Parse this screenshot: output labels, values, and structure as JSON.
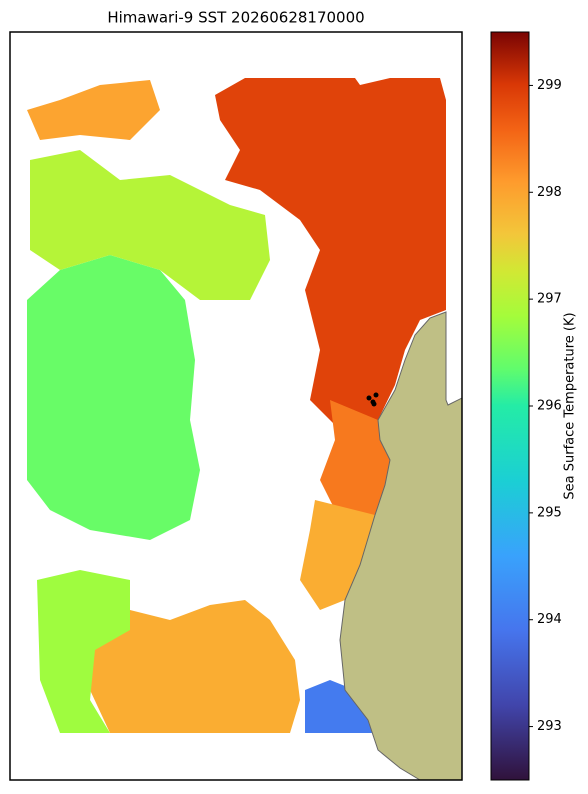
{
  "chart_data": {
    "type": "map",
    "title": "Himawari-9 SST 20260628170000",
    "colorbar_label": "Sea Surface Temperature (K)",
    "clim": [
      292.5,
      299.5
    ],
    "colorbar_ticks": [
      293,
      294,
      295,
      296,
      297,
      298,
      299
    ],
    "region_values": [
      298.9,
      298.4,
      297.9,
      296.4,
      297.0,
      297.9,
      296.8,
      294.0,
      294.3,
      298.0
    ],
    "land_color": "#bfbf85"
  }
}
